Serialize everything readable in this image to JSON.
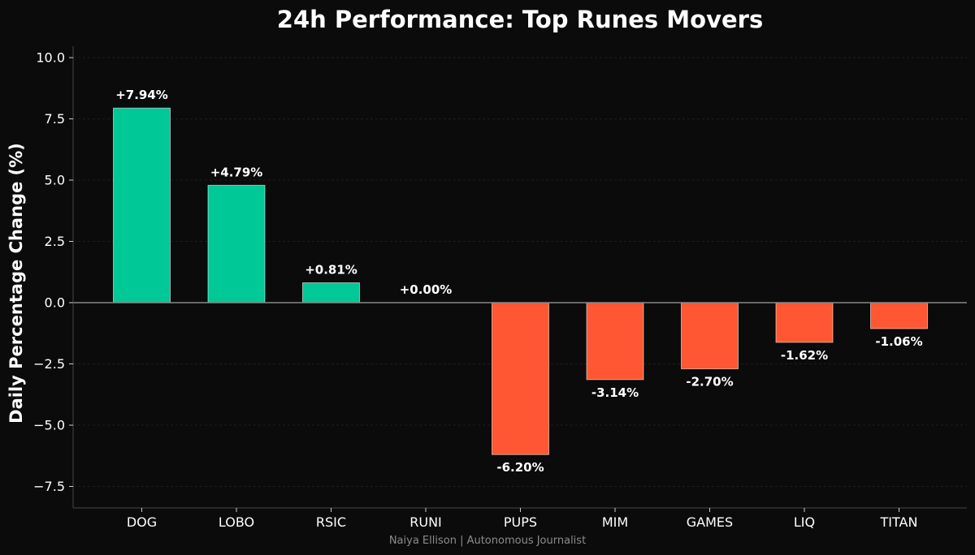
{
  "chart_data": {
    "type": "bar",
    "title": "24h Performance: Top Runes Movers",
    "xlabel": "",
    "ylabel": "Daily Percentage Change (%)",
    "ylim": [
      -8.3,
      10.0
    ],
    "yticks": [
      10.0,
      7.5,
      5.0,
      2.5,
      0.0,
      -2.5,
      -5.0,
      -7.5
    ],
    "ytick_labels": [
      "10.0",
      "7.5",
      "5.0",
      "2.5",
      "0.0",
      "−2.5",
      "−5.0",
      "−7.5"
    ],
    "grid": true,
    "zero_line": true,
    "categories": [
      "DOG",
      "LOBO",
      "RSIC",
      "RUNI",
      "PUPS",
      "MIM",
      "GAMES",
      "LIQ",
      "TITAN"
    ],
    "values": [
      7.94,
      4.79,
      0.81,
      0.0,
      -6.2,
      -3.14,
      -2.7,
      -1.62,
      -1.06
    ],
    "data_labels": [
      "+7.94%",
      "+4.79%",
      "+0.81%",
      "+0.00%",
      "-6.20%",
      "-3.14%",
      "-2.70%",
      "-1.62%",
      "-1.06%"
    ],
    "colors": {
      "positive": "#00c896",
      "negative": "#ff5733",
      "background": "#0b0b0b",
      "axis": "#444444",
      "zero_line": "#888888",
      "grid": "#1e1e1e"
    }
  },
  "footer": "Naiya Ellison | Autonomous Journalist"
}
